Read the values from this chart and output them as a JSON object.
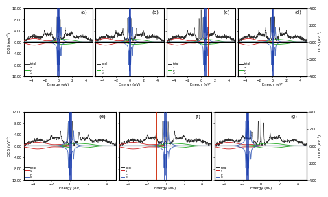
{
  "panels_top": [
    "(a)",
    "(b)",
    "(c)",
    "(d)"
  ],
  "panels_bottom": [
    "(e)",
    "(f)",
    "(g)"
  ],
  "xlim": [
    -5,
    5
  ],
  "ylim_dos": [
    -12,
    12
  ],
  "ylim_ldos": [
    -4,
    4
  ],
  "xlabel": "Energy (eV)",
  "ylabel_left_top": "DOS (eV⁻¹)",
  "ylabel_left_bot": "DOS (eV⁻¹)",
  "ylabel_right_top": "LDOS (eV⁻¹)",
  "ylabel_right_bot": "LDOS (eV⁻¹)",
  "yticks_dos": [
    -12,
    -8,
    -4,
    0,
    4,
    8,
    12
  ],
  "ytick_labels_dos": [
    "12.00",
    "8.00",
    "4.00",
    "0.00",
    "4.00",
    "8.00",
    "12.00"
  ],
  "yticks_ldos": [
    -4,
    -2,
    0,
    2,
    4
  ],
  "ytick_labels_ldos": [
    "4.00",
    "2.00",
    "0.00",
    "2.00",
    "4.00"
  ],
  "xticks": [
    -4,
    -2,
    0,
    2,
    4
  ],
  "colors_total": "#303030",
  "colors_s": "#cc2222",
  "colors_p": "#22aa22",
  "colors_d": "#4466bb",
  "colors_d_light": "#aabbdd",
  "bg_color": "#ffffff",
  "seed": 42,
  "panels": {
    "a": {
      "vlines_blue": [
        -0.15,
        -0.05,
        0.05,
        0.15
      ],
      "vline_red": 0.5,
      "vline_dark": 0.0
    },
    "b": {
      "vlines_blue": [
        -0.12,
        -0.04,
        0.04,
        0.12
      ],
      "vline_red": 0.3,
      "vline_dark": 0.0
    },
    "c": {
      "vlines_blue": [
        0.35,
        0.45,
        0.55,
        0.65
      ],
      "vline_red": 1.0,
      "vline_dark": 0.5
    },
    "d": {
      "vlines_blue": [
        -0.1,
        0.0,
        0.1
      ],
      "vline_red": 0.2,
      "vline_dark": 0.0
    },
    "e": {
      "vlines_blue": [
        -0.15,
        -0.05,
        0.05,
        0.15
      ],
      "vline_red": 0.5,
      "vline_dark": 0.0
    },
    "f": {
      "vlines_blue": [
        -0.15,
        -0.05,
        0.05,
        0.15
      ],
      "vline_red": -1.0,
      "vline_dark": 0.0
    },
    "g": {
      "vlines_blue": [
        -1.6,
        -1.5,
        -1.4
      ],
      "vline_red": 0.2,
      "vline_dark": -1.5
    }
  }
}
